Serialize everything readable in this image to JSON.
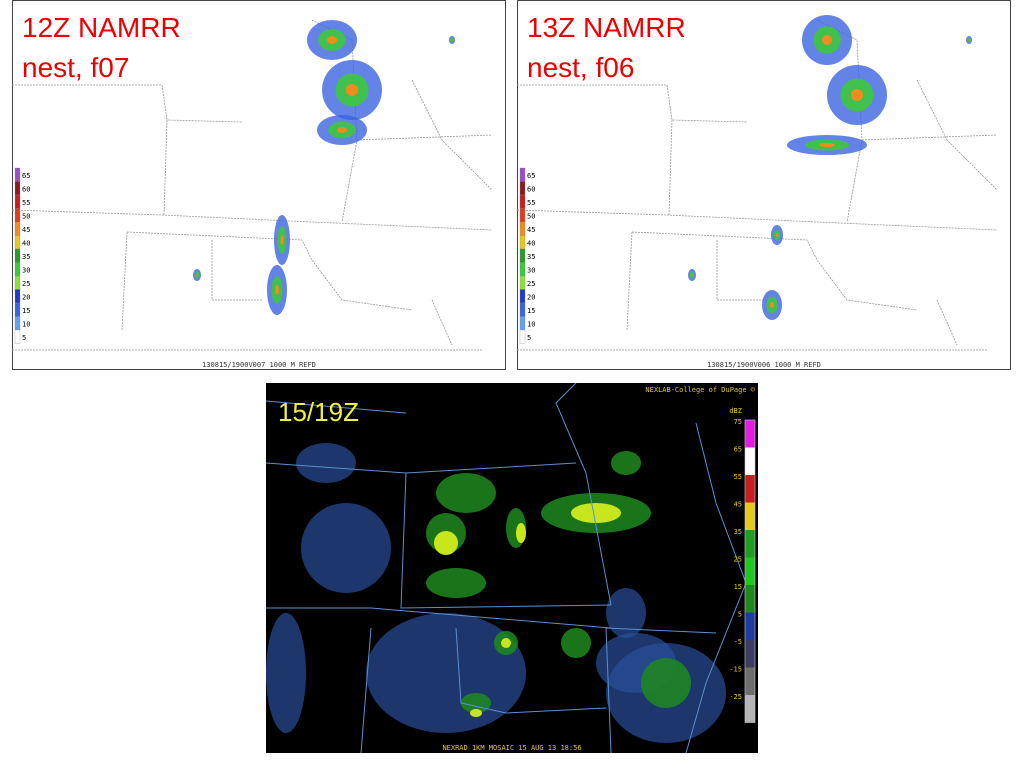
{
  "panels": [
    {
      "title_line1": "12Z NAMRR",
      "title_line2": "nest, f07",
      "legend": [
        65,
        60,
        55,
        50,
        45,
        40,
        35,
        30,
        25,
        20,
        15,
        10,
        5
      ],
      "footer": "130815/1900V007  1000 M  REFD"
    },
    {
      "title_line1": "13Z NAMRR",
      "title_line2": "nest, f06",
      "legend": [
        65,
        60,
        55,
        50,
        45,
        40,
        35,
        30,
        25,
        20,
        15,
        10,
        5
      ],
      "footer": "130815/1900V006  1000 M  REFD"
    }
  ],
  "observed": {
    "title": "15/19Z",
    "credit": "NEXLAB-College of DuPage ©",
    "unit": "dBZ",
    "legend": [
      75,
      65,
      55,
      45,
      35,
      25,
      15,
      5,
      -5,
      -15,
      -25
    ],
    "footer": "NEXRAD 1KM MOSAIC 15 AUG 13  18:56"
  }
}
